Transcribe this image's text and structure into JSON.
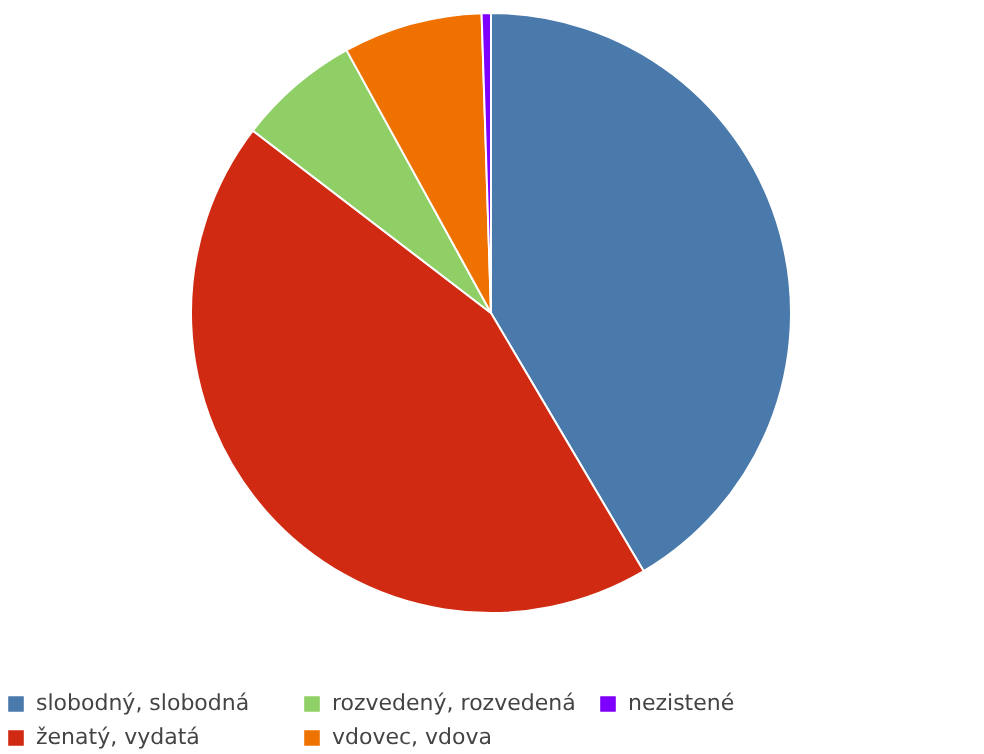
{
  "chart_data": {
    "type": "pie",
    "categories": [
      "slobodný, slobodná",
      "ženatý, vydatá",
      "rozvedený, rozvedená",
      "vdovec, vdova",
      "nezistené"
    ],
    "values": [
      41.5,
      43.9,
      6.6,
      7.5,
      0.5
    ],
    "colors": [
      "#4a7aab",
      "#d12a12",
      "#8fcf66",
      "#ef7200",
      "#7f00ff"
    ],
    "legend": "bottom"
  }
}
